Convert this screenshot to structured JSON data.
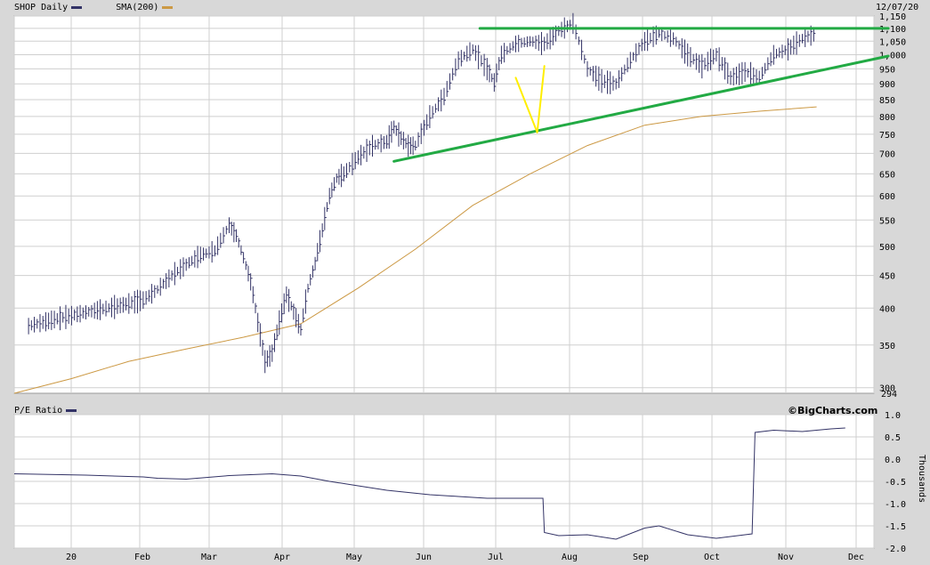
{
  "chart_data": [
    {
      "type": "ohlc-bar",
      "title": "",
      "symbol": "SHOP",
      "period": "Daily",
      "legend": [
        {
          "label": "SHOP Daily",
          "color": "#333366"
        },
        {
          "label": "SMA(200)",
          "color": "#cc9944"
        }
      ],
      "date_label": "12/07/20",
      "y_scale": "log",
      "ylim": [
        294,
        1150
      ],
      "y_ticks": [
        "1,150",
        "1,100",
        "1,050",
        "1,000",
        "950",
        "900",
        "850",
        "800",
        "750",
        "700",
        "650",
        "600",
        "550",
        "500",
        "450",
        "400",
        "350",
        "300"
      ],
      "y_min_label": "294",
      "x_labels": [
        "20",
        "Feb",
        "Mar",
        "Apr",
        "May",
        "Jun",
        "Jul",
        "Aug",
        "Sep",
        "Oct",
        "Nov",
        "Dec"
      ],
      "price_close": [
        [
          1,
          375
        ],
        [
          3,
          385
        ],
        [
          5,
          394
        ],
        [
          7,
          402
        ],
        [
          9,
          412
        ],
        [
          10,
          428
        ],
        [
          11,
          450
        ],
        [
          12,
          468
        ],
        [
          13,
          485
        ],
        [
          14,
          492
        ],
        [
          15,
          540
        ],
        [
          15.5,
          520
        ],
        [
          16,
          480
        ],
        [
          16.5,
          440
        ],
        [
          17,
          380
        ],
        [
          17.5,
          330
        ],
        [
          18,
          340
        ],
        [
          18.5,
          380
        ],
        [
          19,
          420
        ],
        [
          19.5,
          395
        ],
        [
          20,
          370
        ],
        [
          20.5,
          430
        ],
        [
          21,
          470
        ],
        [
          21.5,
          530
        ],
        [
          22,
          600
        ],
        [
          22.5,
          640
        ],
        [
          23,
          650
        ],
        [
          24,
          690
        ],
        [
          25,
          720
        ],
        [
          26,
          730
        ],
        [
          26.5,
          770
        ],
        [
          27,
          740
        ],
        [
          27.5,
          720
        ],
        [
          28,
          720
        ],
        [
          29,
          800
        ],
        [
          30,
          860
        ],
        [
          31,
          980
        ],
        [
          32,
          1020
        ],
        [
          33,
          950
        ],
        [
          33.5,
          905
        ],
        [
          34,
          1000
        ],
        [
          35,
          1040
        ],
        [
          36,
          1050
        ],
        [
          37,
          1040
        ],
        [
          38,
          1090
        ],
        [
          39,
          1120
        ],
        [
          40,
          950
        ],
        [
          41,
          910
        ],
        [
          42,
          900
        ],
        [
          43,
          980
        ],
        [
          44,
          1050
        ],
        [
          45,
          1080
        ],
        [
          46,
          1060
        ],
        [
          47,
          1000
        ],
        [
          48,
          960
        ],
        [
          49,
          1000
        ],
        [
          50,
          920
        ],
        [
          51,
          940
        ],
        [
          52,
          920
        ],
        [
          53,
          1000
        ],
        [
          54,
          1020
        ],
        [
          55,
          1060
        ],
        [
          56,
          1080
        ]
      ],
      "sma200": [
        [
          0,
          294
        ],
        [
          4,
          310
        ],
        [
          8,
          330
        ],
        [
          12,
          345
        ],
        [
          16,
          360
        ],
        [
          20,
          378
        ],
        [
          24,
          430
        ],
        [
          28,
          495
        ],
        [
          32,
          580
        ],
        [
          36,
          650
        ],
        [
          40,
          720
        ],
        [
          44,
          775
        ],
        [
          48,
          800
        ],
        [
          52,
          815
        ],
        [
          56,
          828
        ]
      ],
      "annotations": [
        {
          "type": "line",
          "color": "#22aa44",
          "from": [
            26.5,
            680
          ],
          "to": [
            61,
            995
          ],
          "label": ""
        },
        {
          "type": "line",
          "color": "#22aa44",
          "from": [
            32.5,
            1100
          ],
          "to": [
            61,
            1100
          ],
          "label": ""
        },
        {
          "type": "line",
          "color": "#ffee00",
          "from": [
            35,
            920
          ],
          "to": [
            36.5,
            755
          ],
          "label": ""
        },
        {
          "type": "line",
          "color": "#ffee00",
          "from": [
            37,
            960
          ],
          "to": [
            36.5,
            755
          ],
          "label": ""
        }
      ]
    },
    {
      "type": "line",
      "title": "",
      "legend": [
        {
          "label": "P/E Ratio",
          "color": "#333366"
        }
      ],
      "credit": "©BigCharts.com",
      "ylabel": "Thousands",
      "ylim": [
        -2.0,
        1.0
      ],
      "y_ticks": [
        "1.0",
        "0.5",
        "0.0",
        "-0.5",
        "-1.0",
        "-1.5",
        "-2.0"
      ],
      "x_labels": [
        "20",
        "Feb",
        "Mar",
        "Apr",
        "May",
        "Jun",
        "Jul",
        "Aug",
        "Sep",
        "Oct",
        "Nov",
        "Dec"
      ],
      "values": [
        [
          0,
          -0.33
        ],
        [
          5,
          -0.36
        ],
        [
          9,
          -0.4
        ],
        [
          10,
          -0.43
        ],
        [
          12,
          -0.45
        ],
        [
          15,
          -0.37
        ],
        [
          18,
          -0.33
        ],
        [
          20,
          -0.38
        ],
        [
          22,
          -0.5
        ],
        [
          24,
          -0.6
        ],
        [
          26,
          -0.7
        ],
        [
          29,
          -0.8
        ],
        [
          31,
          -0.84
        ],
        [
          33,
          -0.88
        ],
        [
          36.9,
          -0.88
        ],
        [
          37,
          -1.65
        ],
        [
          38,
          -1.72
        ],
        [
          40,
          -1.7
        ],
        [
          42,
          -1.8
        ],
        [
          44,
          -1.55
        ],
        [
          45,
          -1.5
        ],
        [
          47,
          -1.7
        ],
        [
          49,
          -1.78
        ],
        [
          51,
          -1.7
        ],
        [
          51.5,
          -1.68
        ],
        [
          51.7,
          0.6
        ],
        [
          53,
          0.65
        ],
        [
          55,
          0.62
        ],
        [
          57,
          0.68
        ],
        [
          58,
          0.7
        ]
      ]
    }
  ]
}
